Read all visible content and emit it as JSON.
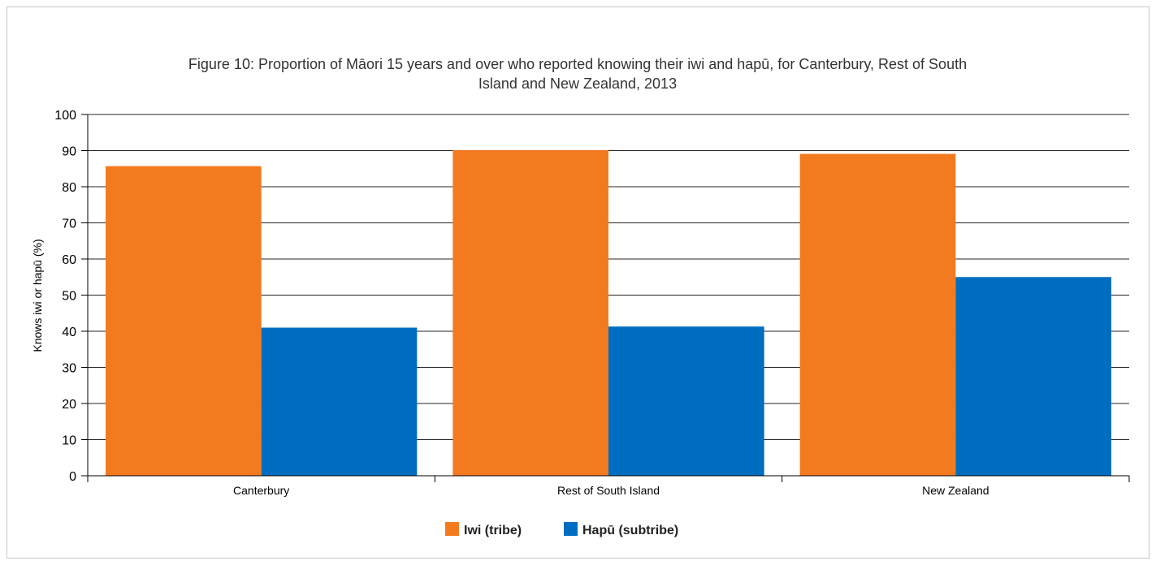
{
  "chart_data": {
    "type": "bar",
    "title_lines": [
      "Figure 10: Proportion of Māori 15 years and over who reported knowing their iwi and hapū, for Canterbury, Rest of South",
      "Island and New Zealand, 2013"
    ],
    "xlabel": "",
    "ylabel": "Knows iwi or hapū (%)",
    "ylim": [
      0,
      100
    ],
    "yticks": [
      0,
      10,
      20,
      30,
      40,
      50,
      60,
      70,
      80,
      90,
      100
    ],
    "categories": [
      "Canterbury",
      "Rest of South Island",
      "New Zealand"
    ],
    "series": [
      {
        "name": "Iwi (tribe)",
        "color": "#f47a20",
        "values": [
          85.7,
          90.1,
          89.1
        ]
      },
      {
        "name": "Hapū (subtribe)",
        "color": "#006ec0",
        "values": [
          41,
          41.3,
          55
        ]
      }
    ],
    "grid": true,
    "legend": "bottom-center"
  }
}
